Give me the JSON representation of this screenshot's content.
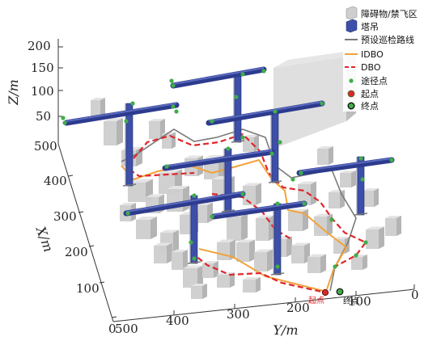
{
  "chart_data": {
    "type": "3d-path",
    "title": "",
    "axes": {
      "x": {
        "label": "X/m",
        "range": [
          0,
          500
        ],
        "ticks": [
          "100",
          "200",
          "300",
          "400",
          "500"
        ]
      },
      "y": {
        "label": "Y/m",
        "range": [
          0,
          500
        ],
        "ticks": [
          "0",
          "100",
          "200",
          "300",
          "400",
          "500"
        ]
      },
      "z": {
        "label": "Z/m",
        "range": [
          0,
          200
        ],
        "ticks": [
          "50",
          "100",
          "150",
          "200"
        ]
      }
    },
    "legend": {
      "placement": "top-right",
      "items": [
        {
          "label": "障碍物/禁飞区",
          "color": "#c8c8c8",
          "marker": "box"
        },
        {
          "label": "塔吊",
          "color": "#3d4fa8",
          "marker": "box"
        },
        {
          "label": "预设巡检路线",
          "color": "#7a7a7a",
          "marker": "line"
        },
        {
          "label": "IDBO",
          "color": "#f2a23a",
          "marker": "line"
        },
        {
          "label": "DBO",
          "color": "#e0262b",
          "marker": "dashed"
        },
        {
          "label": "途径点",
          "color": "#3fae49",
          "marker": "dot"
        },
        {
          "label": "起点",
          "color": "#e0262b",
          "marker": "dot-ring"
        },
        {
          "label": "终点",
          "color": "#3fae49",
          "marker": "dot-ring-dark"
        }
      ]
    },
    "annotations": {
      "start": "起点",
      "end": "终点"
    },
    "series": [
      {
        "name": "预设巡检路线",
        "color": "#7a7a7a"
      },
      {
        "name": "IDBO",
        "color": "#f2a23a"
      },
      {
        "name": "DBO",
        "color": "#e0262b"
      }
    ]
  }
}
